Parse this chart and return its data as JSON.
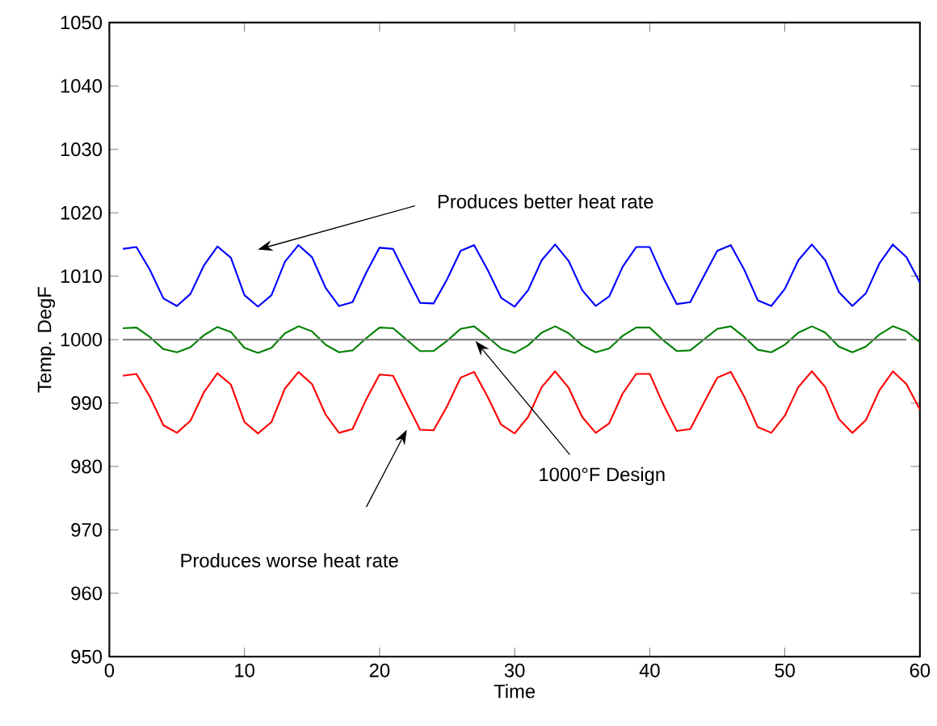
{
  "chart_data": {
    "type": "line",
    "xlabel": "Time",
    "ylabel": "Temp. DegF",
    "x": [
      1,
      2,
      3,
      4,
      5,
      6,
      7,
      8,
      9,
      10,
      11,
      12,
      13,
      14,
      15,
      16,
      17,
      18,
      19,
      20,
      21,
      22,
      23,
      24,
      25,
      26,
      27,
      28,
      29,
      30,
      31,
      32,
      33,
      34,
      35,
      36,
      37,
      38,
      39,
      40,
      41,
      42,
      43,
      44,
      45,
      46,
      47,
      48,
      49,
      50,
      51,
      52,
      53,
      54,
      55,
      56,
      57,
      58,
      59,
      60
    ],
    "series": [
      {
        "color": "#0000ff",
        "values": [
          1014.3,
          1014.6,
          1011.0,
          1006.5,
          1005.3,
          1007.2,
          1011.7,
          1014.7,
          1012.9,
          1007.0,
          1005.2,
          1007.0,
          1012.3,
          1014.9,
          1013.0,
          1008.2,
          1005.3,
          1005.9,
          1010.5,
          1014.5,
          1014.3,
          1010.0,
          1005.8,
          1005.7,
          1009.5,
          1014.0,
          1014.9,
          1011.0,
          1006.6,
          1005.2,
          1007.8,
          1012.5,
          1015.0,
          1012.4,
          1007.8,
          1005.3,
          1006.8,
          1011.5,
          1014.6,
          1014.6,
          1009.8,
          1005.6,
          1005.9,
          1010.0,
          1014.0,
          1014.9,
          1011.0,
          1006.2,
          1005.3,
          1008.0,
          1012.5,
          1015.0,
          1012.5,
          1007.5,
          1005.3,
          1007.3,
          1012.0,
          1015.0,
          1013.0,
          1009.0
        ]
      },
      {
        "color": "#008000",
        "values": [
          1001.8,
          1001.9,
          1000.4,
          998.5,
          998.0,
          998.8,
          1000.7,
          1002.0,
          1001.2,
          998.7,
          997.9,
          998.7,
          1001.0,
          1002.1,
          1001.3,
          999.2,
          998.0,
          998.3,
          1000.2,
          1001.9,
          1001.8,
          1000.0,
          998.2,
          998.2,
          999.8,
          1001.7,
          1002.1,
          1000.4,
          998.6,
          997.9,
          999.1,
          1001.1,
          1002.1,
          1001.0,
          999.1,
          998.0,
          998.6,
          1000.6,
          1001.9,
          1001.9,
          999.9,
          998.2,
          998.3,
          1000.0,
          1001.7,
          1002.1,
          1000.4,
          998.4,
          998.0,
          999.2,
          1001.1,
          1002.1,
          1001.1,
          998.9,
          998.0,
          998.9,
          1000.8,
          1002.1,
          1001.3,
          999.6
        ]
      },
      {
        "color": "#ff0000",
        "values": [
          994.3,
          994.6,
          991.0,
          986.5,
          985.3,
          987.2,
          991.7,
          994.7,
          992.9,
          987.0,
          985.2,
          987.0,
          992.3,
          994.9,
          993.0,
          988.2,
          985.3,
          985.9,
          990.5,
          994.5,
          994.3,
          990.0,
          985.8,
          985.7,
          989.5,
          994.0,
          994.9,
          991.0,
          986.6,
          985.2,
          987.8,
          992.5,
          995.0,
          992.4,
          987.8,
          985.3,
          986.8,
          991.5,
          994.6,
          994.6,
          989.8,
          985.6,
          985.9,
          990.0,
          994.0,
          994.9,
          991.0,
          986.2,
          985.3,
          988.0,
          992.5,
          995.0,
          992.5,
          987.5,
          985.3,
          987.3,
          992.0,
          995.0,
          993.0,
          989.0
        ]
      },
      {
        "color": "#808080",
        "x": [
          1,
          59
        ],
        "values": [
          1000,
          1000
        ]
      }
    ],
    "annotations": [
      "Produces better heat rate",
      {
        "text": "1000°F Design",
        "x": 27.1,
        "y": 999.8
      },
      "Produces worse heat rate"
    ],
    "xlim": [
      0,
      60
    ],
    "ylim": [
      950,
      1050
    ],
    "xticks": [
      0,
      10,
      20,
      30,
      40,
      50,
      60
    ],
    "yticks": [
      950,
      960,
      970,
      980,
      990,
      1000,
      1010,
      1020,
      1030,
      1040,
      1050
    ],
    "grid": false,
    "marker": "none",
    "line_style": "solid"
  }
}
